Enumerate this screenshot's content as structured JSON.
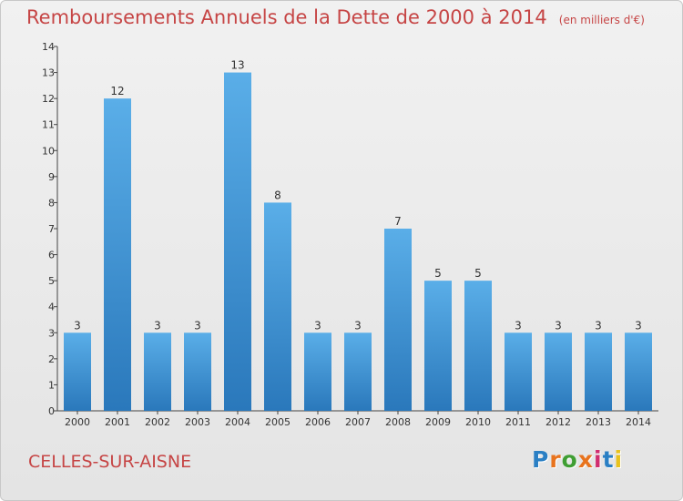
{
  "chart_data": {
    "type": "bar",
    "title": "Remboursements Annuels de la Dette de 2000 à 2014",
    "unit": "(en milliers d'€)",
    "categories": [
      "2000",
      "2001",
      "2002",
      "2003",
      "2004",
      "2005",
      "2006",
      "2007",
      "2008",
      "2009",
      "2010",
      "2011",
      "2012",
      "2013",
      "2014"
    ],
    "values": [
      3,
      12,
      3,
      3,
      13,
      8,
      3,
      3,
      7,
      5,
      5,
      3,
      3,
      3,
      3
    ],
    "ylim": [
      0,
      14
    ],
    "yticks": [
      0,
      1,
      2,
      3,
      4,
      5,
      6,
      7,
      8,
      9,
      10,
      11,
      12,
      13,
      14
    ],
    "bar_color": "#3f95d6",
    "grid": false,
    "data_labels": true
  },
  "footer": {
    "commune": "CELLES-SUR-AISNE",
    "logo": "Proxiti",
    "logo_colors": [
      "#2a7fc4",
      "#e8731d",
      "#3f9e33",
      "#e8731d",
      "#d12d6f",
      "#2a7fc4",
      "#e8c21d"
    ]
  }
}
